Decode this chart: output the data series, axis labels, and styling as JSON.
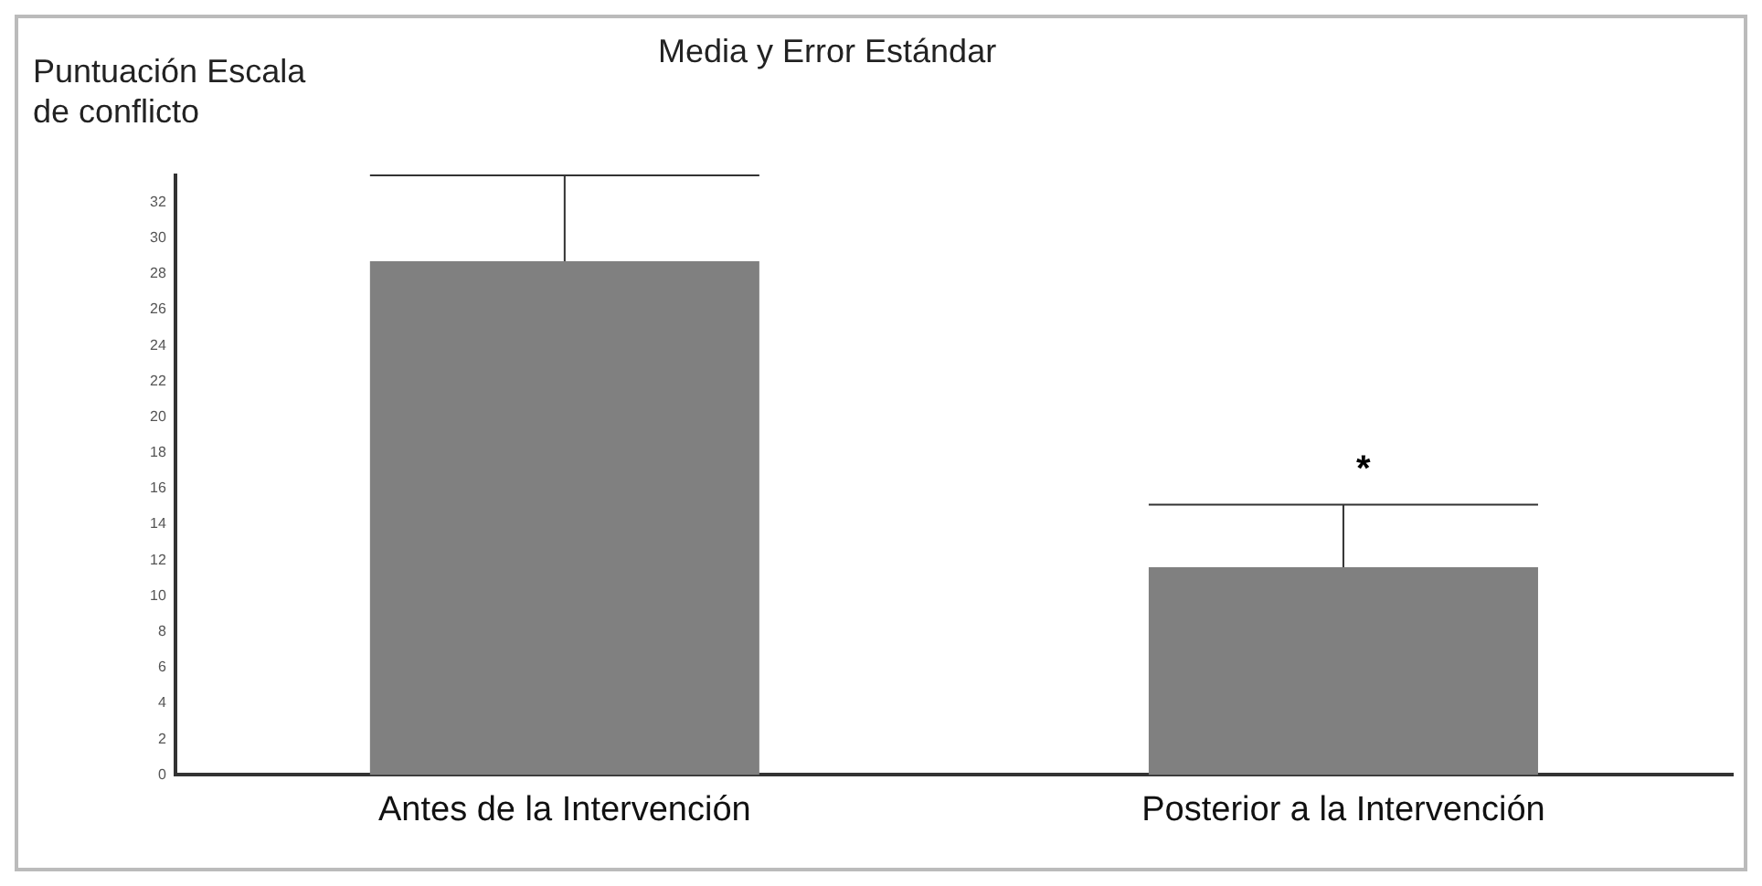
{
  "chart_data": {
    "type": "bar",
    "title": "Media y Error Estándar",
    "ylabel": "Puntuación Escala de conflicto",
    "categories": [
      "Antes de la Intervención",
      "Posterior a la Intervención"
    ],
    "values": [
      28.7,
      11.6
    ],
    "color": "#808080",
    "errors": [
      [
        28.7,
        33.5
      ],
      [
        11.6,
        15.1
      ]
    ],
    "ylim": [
      0,
      33.5
    ],
    "yticks": [
      0,
      2,
      4,
      6,
      8,
      10,
      12,
      14,
      16,
      18,
      20,
      22,
      24,
      26,
      28,
      30,
      32
    ],
    "grid": false,
    "annotations": [
      "*"
    ]
  }
}
